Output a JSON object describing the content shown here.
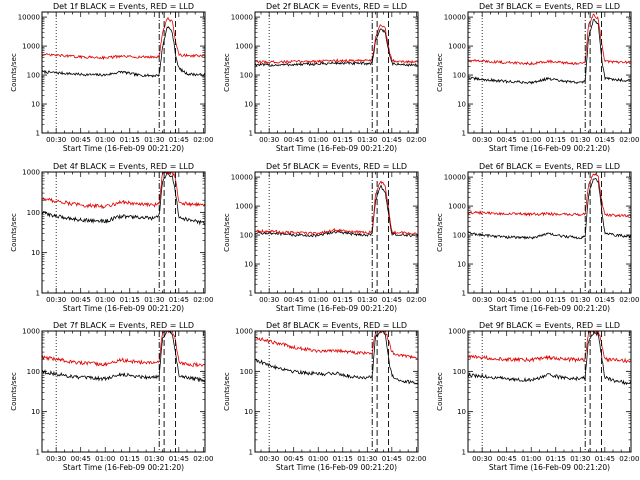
{
  "colors": {
    "events": "#000000",
    "lld": "#e00000",
    "axes": "#000000"
  },
  "chart_data": [
    {
      "type": "line",
      "title": "Det 1f  BLACK = Events, RED = LLD",
      "xlabel": "Start Time (16-Feb-09 00:21:20)",
      "ylabel": "Counts/sec",
      "xlim": [
        "00:21:20",
        "02:01:00"
      ],
      "ylim": [
        1,
        15000
      ],
      "yscale": "log",
      "xticks": [
        "00:30",
        "00:45",
        "01:00",
        "01:15",
        "01:30",
        "01:45",
        "02:00"
      ],
      "yticks": [
        "1",
        "10",
        "100",
        "1000",
        "10000"
      ],
      "marker_lines": {
        "dotted": "00:30",
        "dash_dot": "01:33",
        "dashed": [
          "01:36",
          "01:43"
        ]
      },
      "series": [
        {
          "x": [
            "00:21",
            "00:30",
            "00:45",
            "01:00",
            "01:10",
            "01:20",
            "01:30",
            "01:33",
            "01:35",
            "01:38",
            "01:41",
            "01:43",
            "01:45",
            "01:50",
            "02:00"
          ],
          "values": [
            130,
            120,
            105,
            100,
            130,
            100,
            95,
            100,
            900,
            5000,
            3000,
            500,
            170,
            110,
            100
          ]
        },
        {
          "x": [
            "00:21",
            "00:30",
            "00:45",
            "01:00",
            "01:10",
            "01:20",
            "01:30",
            "01:33",
            "01:35",
            "01:38",
            "01:41",
            "01:43",
            "01:45",
            "01:50",
            "02:00"
          ],
          "values": [
            500,
            480,
            420,
            400,
            440,
            420,
            420,
            430,
            3000,
            9000,
            7000,
            1500,
            500,
            470,
            450
          ]
        }
      ]
    },
    {
      "type": "line",
      "title": "Det 2f  BLACK = Events, RED = LLD",
      "xlabel": "Start Time (16-Feb-09 00:21:20)",
      "ylabel": "Counts/sec",
      "xlim": [
        "00:21:20",
        "02:01:00"
      ],
      "ylim": [
        1,
        15000
      ],
      "yscale": "log",
      "xticks": [
        "00:30",
        "00:45",
        "01:00",
        "01:15",
        "01:30",
        "01:45",
        "02:00"
      ],
      "yticks": [
        "1",
        "10",
        "100",
        "1000",
        "10000"
      ],
      "marker_lines": {
        "dotted": "00:30",
        "dash_dot": "01:33",
        "dashed": [
          "01:36",
          "01:43"
        ]
      },
      "series": [
        {
          "x": [
            "00:21",
            "00:30",
            "00:45",
            "01:00",
            "01:10",
            "01:20",
            "01:30",
            "01:33",
            "01:35",
            "01:38",
            "01:41",
            "01:43",
            "01:45",
            "01:50",
            "02:00"
          ],
          "values": [
            230,
            220,
            230,
            240,
            260,
            250,
            250,
            250,
            1500,
            4000,
            3000,
            700,
            250,
            230,
            220
          ]
        },
        {
          "x": [
            "00:21",
            "00:30",
            "00:45",
            "01:00",
            "01:10",
            "01:20",
            "01:30",
            "01:33",
            "01:35",
            "01:38",
            "01:41",
            "01:43",
            "01:45",
            "01:50",
            "02:00"
          ],
          "values": [
            290,
            280,
            290,
            300,
            320,
            310,
            310,
            320,
            2000,
            5500,
            4000,
            900,
            320,
            300,
            280
          ]
        }
      ]
    },
    {
      "type": "line",
      "title": "Det 3f  BLACK = Events, RED = LLD",
      "xlabel": "Start Time (16-Feb-09 00:21:20)",
      "ylabel": "Counts/sec",
      "xlim": [
        "00:21:20",
        "02:01:00"
      ],
      "ylim": [
        1,
        15000
      ],
      "yscale": "log",
      "xticks": [
        "00:30",
        "00:45",
        "01:00",
        "01:15",
        "01:30",
        "01:45",
        "02:00"
      ],
      "yticks": [
        "1",
        "10",
        "100",
        "1000",
        "10000"
      ],
      "marker_lines": {
        "dotted": "00:30",
        "dash_dot": "01:33",
        "dashed": [
          "01:36",
          "01:43"
        ]
      },
      "series": [
        {
          "x": [
            "00:21",
            "00:30",
            "00:45",
            "01:00",
            "01:10",
            "01:20",
            "01:30",
            "01:33",
            "01:35",
            "01:38",
            "01:41",
            "01:43",
            "01:45",
            "01:50",
            "02:00"
          ],
          "values": [
            80,
            70,
            60,
            55,
            75,
            60,
            55,
            60,
            2000,
            8000,
            6000,
            400,
            80,
            70,
            65
          ]
        },
        {
          "x": [
            "00:21",
            "00:30",
            "00:45",
            "01:00",
            "01:10",
            "01:20",
            "01:30",
            "01:33",
            "01:35",
            "01:38",
            "01:41",
            "01:43",
            "01:45",
            "01:50",
            "02:00"
          ],
          "values": [
            320,
            300,
            270,
            250,
            300,
            260,
            250,
            260,
            5000,
            12000,
            9000,
            1200,
            300,
            280,
            270
          ]
        }
      ]
    },
    {
      "type": "line",
      "title": "Det 4f  BLACK = Events, RED = LLD",
      "xlabel": "Start Time (16-Feb-09 00:21:20)",
      "ylabel": "Counts/sec",
      "xlim": [
        "00:21:20",
        "02:01:00"
      ],
      "ylim": [
        1,
        1000
      ],
      "yscale": "log",
      "xticks": [
        "00:30",
        "00:45",
        "01:00",
        "01:15",
        "01:30",
        "01:45",
        "02:00"
      ],
      "yticks": [
        "1",
        "10",
        "100",
        "1000"
      ],
      "marker_lines": {
        "dotted": "00:30",
        "dash_dot": "01:33",
        "dashed": [
          "01:36",
          "01:43"
        ]
      },
      "series": [
        {
          "x": [
            "00:21",
            "00:30",
            "00:45",
            "01:00",
            "01:10",
            "01:20",
            "01:30",
            "01:33",
            "01:35",
            "01:38",
            "01:41",
            "01:43",
            "01:45",
            "01:50",
            "02:00"
          ],
          "values": [
            100,
            80,
            65,
            60,
            80,
            75,
            70,
            80,
            600,
            900,
            800,
            300,
            80,
            65,
            55
          ]
        },
        {
          "x": [
            "00:21",
            "00:30",
            "00:45",
            "01:00",
            "01:10",
            "01:20",
            "01:30",
            "01:33",
            "01:35",
            "01:38",
            "01:41",
            "01:43",
            "01:45",
            "01:50",
            "02:00"
          ],
          "values": [
            220,
            190,
            150,
            140,
            180,
            160,
            150,
            170,
            950,
            1000,
            1000,
            700,
            180,
            160,
            150
          ]
        }
      ]
    },
    {
      "type": "line",
      "title": "Det 5f  BLACK = Events, RED = LLD",
      "xlabel": "Start Time (16-Feb-09 00:21:20)",
      "ylabel": "Counts/sec",
      "xlim": [
        "00:21:20",
        "02:01:00"
      ],
      "ylim": [
        1,
        15000
      ],
      "yscale": "log",
      "xticks": [
        "00:30",
        "00:45",
        "01:00",
        "01:15",
        "01:30",
        "01:45",
        "02:00"
      ],
      "yticks": [
        "1",
        "10",
        "100",
        "1000",
        "10000"
      ],
      "marker_lines": {
        "dotted": "00:30",
        "dash_dot": "01:33",
        "dashed": [
          "01:36",
          "01:43"
        ]
      },
      "series": [
        {
          "x": [
            "00:21",
            "00:30",
            "00:45",
            "01:00",
            "01:10",
            "01:20",
            "01:30",
            "01:33",
            "01:35",
            "01:38",
            "01:41",
            "01:43",
            "01:45",
            "01:50",
            "02:00"
          ],
          "values": [
            120,
            115,
            100,
            95,
            130,
            110,
            100,
            110,
            1500,
            5000,
            3000,
            500,
            110,
            100,
            95
          ]
        },
        {
          "x": [
            "00:21",
            "00:30",
            "00:45",
            "01:00",
            "01:10",
            "01:20",
            "01:30",
            "01:33",
            "01:35",
            "01:38",
            "01:41",
            "01:43",
            "01:45",
            "01:50",
            "02:00"
          ],
          "values": [
            140,
            135,
            120,
            115,
            150,
            130,
            120,
            130,
            2500,
            7000,
            5000,
            800,
            130,
            120,
            110
          ]
        }
      ]
    },
    {
      "type": "line",
      "title": "Det 6f  BLACK = Events, RED = LLD",
      "xlabel": "Start Time (16-Feb-09 00:21:20)",
      "ylabel": "Counts/sec",
      "xlim": [
        "00:21:20",
        "02:01:00"
      ],
      "ylim": [
        1,
        15000
      ],
      "yscale": "log",
      "xticks": [
        "00:30",
        "00:45",
        "01:00",
        "01:15",
        "01:30",
        "01:45",
        "02:00"
      ],
      "yticks": [
        "1",
        "10",
        "100",
        "1000",
        "10000"
      ],
      "marker_lines": {
        "dotted": "00:30",
        "dash_dot": "01:33",
        "dashed": [
          "01:36",
          "01:43"
        ]
      },
      "series": [
        {
          "x": [
            "00:21",
            "00:30",
            "00:45",
            "01:00",
            "01:10",
            "01:20",
            "01:30",
            "01:33",
            "01:35",
            "01:38",
            "01:41",
            "01:43",
            "01:45",
            "01:50",
            "02:00"
          ],
          "values": [
            120,
            100,
            85,
            80,
            110,
            90,
            80,
            90,
            2500,
            9000,
            7000,
            800,
            120,
            100,
            90
          ]
        },
        {
          "x": [
            "00:21",
            "00:30",
            "00:45",
            "01:00",
            "01:10",
            "01:20",
            "01:30",
            "01:33",
            "01:35",
            "01:38",
            "01:41",
            "01:43",
            "01:45",
            "01:50",
            "02:00"
          ],
          "values": [
            600,
            580,
            540,
            520,
            540,
            520,
            510,
            520,
            5000,
            13000,
            11000,
            1500,
            500,
            480,
            470
          ]
        }
      ]
    },
    {
      "type": "line",
      "title": "Det 7f  BLACK = Events, RED = LLD",
      "xlabel": "Start Time (16-Feb-09 00:21:20)",
      "ylabel": "Counts/sec",
      "xlim": [
        "00:21:20",
        "02:01:00"
      ],
      "ylim": [
        1,
        1000
      ],
      "yscale": "log",
      "xticks": [
        "00:30",
        "00:45",
        "01:00",
        "01:15",
        "01:30",
        "01:45",
        "02:00"
      ],
      "yticks": [
        "1",
        "10",
        "100",
        "1000"
      ],
      "marker_lines": {
        "dotted": "00:30",
        "dash_dot": "01:33",
        "dashed": [
          "01:36",
          "01:43"
        ]
      },
      "series": [
        {
          "x": [
            "00:21",
            "00:30",
            "00:45",
            "01:00",
            "01:10",
            "01:20",
            "01:30",
            "01:33",
            "01:35",
            "01:38",
            "01:41",
            "01:43",
            "01:45",
            "01:50",
            "02:00"
          ],
          "values": [
            100,
            85,
            70,
            65,
            85,
            75,
            70,
            80,
            700,
            950,
            900,
            300,
            80,
            70,
            60
          ]
        },
        {
          "x": [
            "00:21",
            "00:30",
            "00:45",
            "01:00",
            "01:10",
            "01:20",
            "01:30",
            "01:33",
            "01:35",
            "01:38",
            "01:41",
            "01:43",
            "01:45",
            "01:50",
            "02:00"
          ],
          "values": [
            220,
            200,
            160,
            150,
            190,
            170,
            160,
            180,
            950,
            1000,
            1000,
            600,
            170,
            150,
            140
          ]
        }
      ]
    },
    {
      "type": "line",
      "title": "Det 8f  BLACK = Events, RED = LLD",
      "xlabel": "Start Time (16-Feb-09 00:21:20)",
      "ylabel": "Counts/sec",
      "xlim": [
        "00:21:20",
        "02:01:00"
      ],
      "ylim": [
        1,
        1000
      ],
      "yscale": "log",
      "xticks": [
        "00:30",
        "00:45",
        "01:00",
        "01:15",
        "01:30",
        "01:45",
        "02:00"
      ],
      "yticks": [
        "1",
        "10",
        "100",
        "1000"
      ],
      "marker_lines": {
        "dotted": "00:30",
        "dash_dot": "01:33",
        "dashed": [
          "01:36",
          "01:43"
        ]
      },
      "series": [
        {
          "x": [
            "00:21",
            "00:30",
            "00:45",
            "01:00",
            "01:10",
            "01:20",
            "01:30",
            "01:33",
            "01:35",
            "01:38",
            "01:41",
            "01:43",
            "01:45",
            "01:50",
            "02:00"
          ],
          "values": [
            200,
            140,
            100,
            85,
            90,
            75,
            70,
            75,
            700,
            950,
            900,
            200,
            80,
            60,
            50
          ]
        },
        {
          "x": [
            "00:21",
            "00:30",
            "00:45",
            "01:00",
            "01:10",
            "01:20",
            "01:30",
            "01:33",
            "01:35",
            "01:38",
            "01:41",
            "01:43",
            "01:45",
            "01:50",
            "02:00"
          ],
          "values": [
            700,
            550,
            400,
            320,
            330,
            300,
            280,
            300,
            950,
            1000,
            1000,
            600,
            300,
            250,
            220
          ]
        }
      ]
    },
    {
      "type": "line",
      "title": "Det 9f  BLACK = Events, RED = LLD",
      "xlabel": "Start Time (16-Feb-09 00:21:20)",
      "ylabel": "Counts/sec",
      "xlim": [
        "00:21:20",
        "02:01:00"
      ],
      "ylim": [
        1,
        1000
      ],
      "yscale": "log",
      "xticks": [
        "00:30",
        "00:45",
        "01:00",
        "01:15",
        "01:30",
        "01:45",
        "02:00"
      ],
      "yticks": [
        "1",
        "10",
        "100",
        "1000"
      ],
      "marker_lines": {
        "dotted": "00:30",
        "dash_dot": "01:33",
        "dashed": [
          "01:36",
          "01:43"
        ]
      },
      "series": [
        {
          "x": [
            "00:21",
            "00:30",
            "00:45",
            "01:00",
            "01:10",
            "01:20",
            "01:30",
            "01:33",
            "01:35",
            "01:38",
            "01:41",
            "01:43",
            "01:45",
            "01:50",
            "02:00"
          ],
          "values": [
            80,
            75,
            65,
            60,
            80,
            70,
            65,
            70,
            600,
            900,
            850,
            250,
            70,
            60,
            50
          ]
        },
        {
          "x": [
            "00:21",
            "00:30",
            "00:45",
            "01:00",
            "01:10",
            "01:20",
            "01:30",
            "01:33",
            "01:35",
            "01:38",
            "01:41",
            "01:43",
            "01:45",
            "01:50",
            "02:00"
          ],
          "values": [
            230,
            220,
            200,
            190,
            220,
            200,
            190,
            200,
            950,
            1000,
            1000,
            500,
            200,
            190,
            180
          ]
        }
      ]
    }
  ]
}
